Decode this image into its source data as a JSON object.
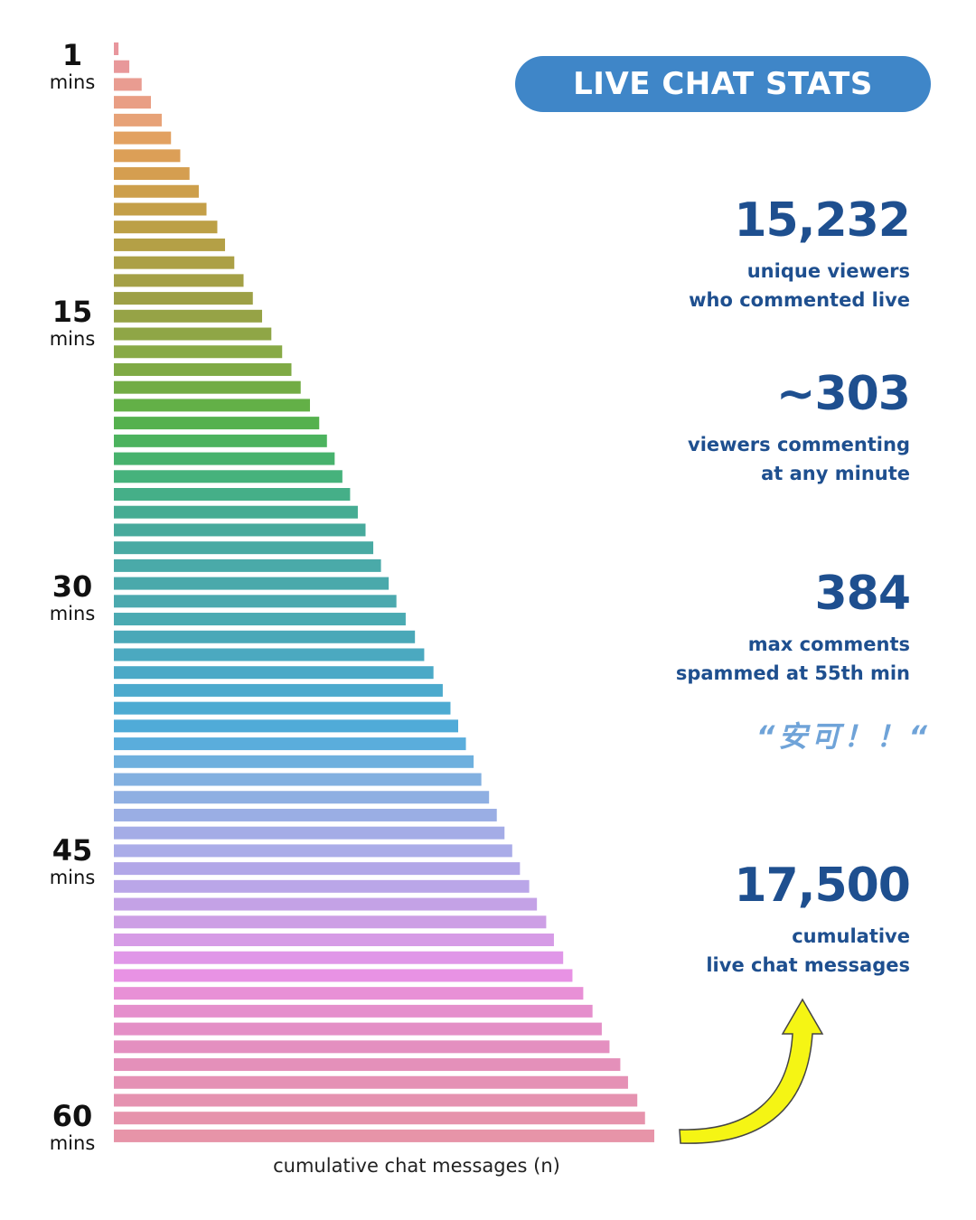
{
  "header": {
    "title": "LIVE CHAT STATS"
  },
  "colors": {
    "title_bg": "#3f86c8",
    "stat_text": "#1e4f8f",
    "quote_text": "#6fa3d8",
    "arrow_fill": "#f5f514",
    "arrow_stroke": "#444444"
  },
  "stats": [
    {
      "value": "15,232",
      "line1": "unique viewers",
      "line2": "who commented live"
    },
    {
      "value": "~303",
      "line1": "viewers commenting",
      "line2": "at any minute"
    },
    {
      "value": "384",
      "line1": "max comments",
      "line2": "spammed at 55th min"
    },
    {
      "value": "17,500",
      "line1": "cumulative",
      "line2": "live chat messages"
    }
  ],
  "quote": "“安可！！“",
  "chart_data": {
    "type": "bar",
    "orientation": "horizontal",
    "title": "",
    "xlabel": "cumulative chat messages (n)",
    "ylabel": "",
    "y_ticks": [
      {
        "minute": 1,
        "num": "1",
        "unit": "mins"
      },
      {
        "minute": 15,
        "num": "15",
        "unit": "mins"
      },
      {
        "minute": 30,
        "num": "30",
        "unit": "mins"
      },
      {
        "minute": 45,
        "num": "45",
        "unit": "mins"
      },
      {
        "minute": 60,
        "num": "60",
        "unit": "mins"
      }
    ],
    "xlim": [
      0,
      17500
    ],
    "categories": [
      1,
      2,
      3,
      4,
      5,
      6,
      7,
      8,
      9,
      10,
      11,
      12,
      13,
      14,
      15,
      16,
      17,
      18,
      19,
      20,
      21,
      22,
      23,
      24,
      25,
      26,
      27,
      28,
      29,
      30,
      31,
      32,
      33,
      34,
      35,
      36,
      37,
      38,
      39,
      40,
      41,
      42,
      43,
      44,
      45,
      46,
      47,
      48,
      49,
      50,
      51,
      52,
      53,
      54,
      55,
      56,
      57,
      58,
      59,
      60,
      61,
      62
    ],
    "values": [
      150,
      500,
      900,
      1200,
      1550,
      1850,
      2150,
      2450,
      2750,
      3000,
      3350,
      3600,
      3900,
      4200,
      4500,
      4800,
      5100,
      5450,
      5750,
      6050,
      6350,
      6650,
      6900,
      7150,
      7400,
      7650,
      7900,
      8150,
      8400,
      8650,
      8900,
      9150,
      9450,
      9750,
      10050,
      10350,
      10650,
      10900,
      11150,
      11400,
      11650,
      11900,
      12150,
      12400,
      12650,
      12900,
      13150,
      13450,
      13700,
      14000,
      14250,
      14550,
      14850,
      15200,
      15500,
      15800,
      16050,
      16400,
      16650,
      16950,
      17200,
      17500
    ],
    "bar_colors": [
      "#e8969d",
      "#e8989a",
      "#e99c91",
      "#e99e84",
      "#e7a277",
      "#e2a161",
      "#dc9f57",
      "#d59e50",
      "#cd9f4b",
      "#c49f48",
      "#bca046",
      "#b4a046",
      "#aca046",
      "#a4a046",
      "#9da046",
      "#96a346",
      "#8fa646",
      "#88aa46",
      "#7faa45",
      "#72ac45",
      "#63b047",
      "#55b14e",
      "#4cb35e",
      "#47b26d",
      "#46b27c",
      "#45af88",
      "#46ac93",
      "#47aa9c",
      "#49aaa3",
      "#4aaaa9",
      "#4aa9ab",
      "#4ba9ae",
      "#4aaab2",
      "#4aa8b8",
      "#4ba9c0",
      "#4ba9c7",
      "#4caacd",
      "#4dabd2",
      "#50abd8",
      "#5aaddc",
      "#6eb0de",
      "#82b0e0",
      "#8fafe2",
      "#9aaee4",
      "#a4ace6",
      "#aaace8",
      "#b2a7e8",
      "#baa6e8",
      "#c4a2e6",
      "#cd9fe5",
      "#d69be6",
      "#e097e8",
      "#e892e4",
      "#e890d6",
      "#e58fcc",
      "#e48fc6",
      "#e48fc0",
      "#e490ba",
      "#e591b5",
      "#e592b0",
      "#e693ac",
      "#e794a8"
    ]
  }
}
